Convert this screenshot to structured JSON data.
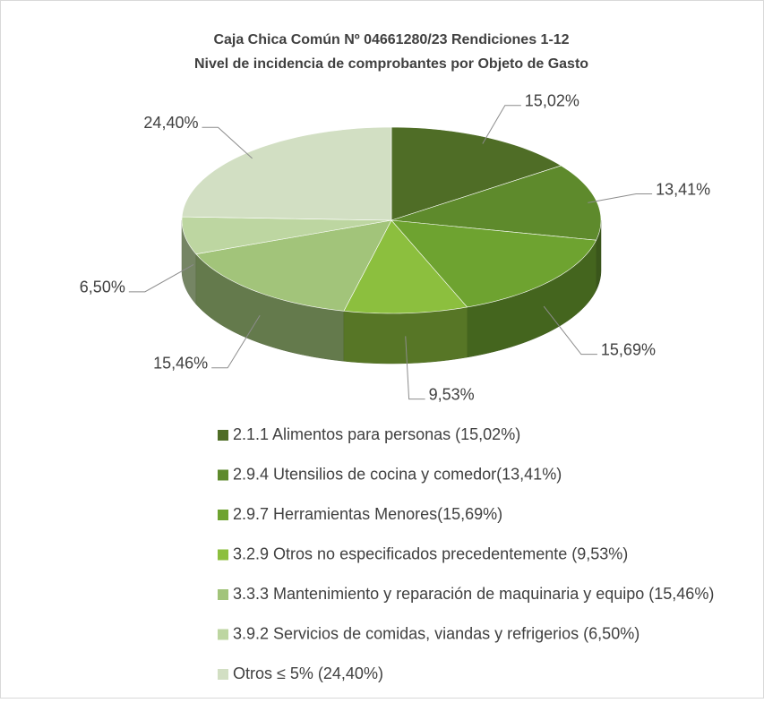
{
  "chart_data": {
    "type": "pie",
    "title": "Caja Chica Común Nº 04661280/23 Rendiciones 1-12",
    "subtitle": "Nivel de incidencia de comprobantes por Objeto de Gasto",
    "categories": [
      "2.1.1 Alimentos para personas (15,02%)",
      "2.9.4 Utensilios de cocina y comedor(13,41%)",
      "2.9.7 Herramientas Menores(15,69%)",
      "3.2.9 Otros no especificados precedentemente (9,53%)",
      "3.3.3 Mantenimiento y reparación de maquinaria y equipo (15,46%)",
      "3.9.2 Servicios de comidas, viandas y refrigerios (6,50%)",
      "Otros ≤ 5% (24,40%)"
    ],
    "values": [
      15.02,
      13.41,
      15.69,
      9.53,
      15.46,
      6.5,
      24.4
    ],
    "value_labels": [
      "15,02%",
      "13,41%",
      "15,69%",
      "9,53%",
      "15,46%",
      "6,50%",
      "24,40%"
    ],
    "colors": [
      "#4f6d26",
      "#5e8a2c",
      "#6ea330",
      "#8cbf3e",
      "#a2c47a",
      "#bdd6a1",
      "#d2dfc3"
    ],
    "legend": "bottom"
  }
}
